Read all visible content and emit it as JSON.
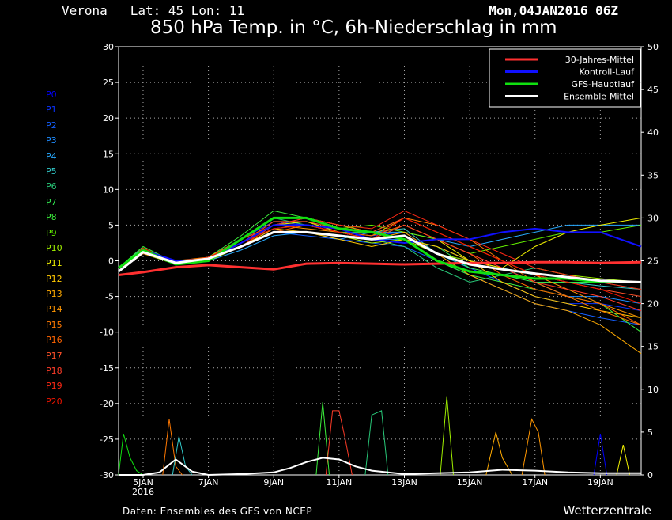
{
  "header": {
    "station": "Verona   Lat: 45 Lon: 11",
    "run": "Mon,04JAN2016 06Z",
    "title": "850 hPa Temp. in °C, 6h-Niederschlag in mm"
  },
  "footer": {
    "source": "Daten: Ensembles des GFS von NCEP",
    "brand": "Wetterzentrale"
  },
  "members": [
    {
      "label": "P0",
      "color": "#0000ff"
    },
    {
      "label": "P1",
      "color": "#0a32ff"
    },
    {
      "label": "P2",
      "color": "#1460ff"
    },
    {
      "label": "P3",
      "color": "#1e8cff"
    },
    {
      "label": "P4",
      "color": "#28aaff"
    },
    {
      "label": "P5",
      "color": "#32c8c8"
    },
    {
      "label": "P6",
      "color": "#28c878"
    },
    {
      "label": "P7",
      "color": "#32e650"
    },
    {
      "label": "P8",
      "color": "#3cf03c"
    },
    {
      "label": "P9",
      "color": "#64f000"
    },
    {
      "label": "P10",
      "color": "#a0f000"
    },
    {
      "label": "P11",
      "color": "#f0f000"
    },
    {
      "label": "P12",
      "color": "#ffc800"
    },
    {
      "label": "P13",
      "color": "#ffaa00"
    },
    {
      "label": "P14",
      "color": "#ff9600"
    },
    {
      "label": "P15",
      "color": "#ff7800"
    },
    {
      "label": "P16",
      "color": "#ff6400"
    },
    {
      "label": "P17",
      "color": "#ff5028"
    },
    {
      "label": "P18",
      "color": "#ff3c28"
    },
    {
      "label": "P19",
      "color": "#ff2814"
    },
    {
      "label": "P20",
      "color": "#f01400"
    }
  ],
  "legend": [
    {
      "label": "30-Jahres-Mittel",
      "color": "#ff3030"
    },
    {
      "label": "Kontroll-Lauf",
      "color": "#1010ff"
    },
    {
      "label": "GFS-Hauptlauf",
      "color": "#10e010"
    },
    {
      "label": "Ensemble-Mittel",
      "color": "#ffffff"
    }
  ],
  "chart_data": {
    "type": "line",
    "xlabel": "",
    "ylabel": "",
    "x_range_days": [
      4.25,
      20.25
    ],
    "x_ticks": [
      "5JAN",
      "7JAN",
      "9JAN",
      "11JAN",
      "13JAN",
      "15JAN",
      "17JAN",
      "19JAN"
    ],
    "x_ticks_days": [
      5,
      7,
      9,
      11,
      13,
      15,
      17,
      19
    ],
    "x_year_label": "2016",
    "y_left": {
      "min": -30,
      "max": 30,
      "ticks": [
        30,
        25,
        20,
        15,
        10,
        5,
        0,
        -5,
        -10,
        -15,
        -20,
        -25,
        -30
      ]
    },
    "y_right": {
      "min": 0,
      "max": 50,
      "ticks": [
        50,
        45,
        40,
        35,
        30,
        25,
        20,
        15,
        10,
        5,
        0
      ]
    },
    "grid": true,
    "legend_position": "top-right",
    "temperature_series": [
      {
        "name": "30-Jahres-Mittel",
        "color": "#ff3030",
        "x": [
          4.25,
          5,
          6,
          7,
          8,
          9,
          10,
          11,
          12,
          13,
          14,
          15,
          16,
          17,
          18,
          19,
          20.25
        ],
        "y": [
          -2,
          -1.6,
          -0.9,
          -0.6,
          -0.9,
          -1.2,
          -0.4,
          -0.3,
          -0.4,
          -0.5,
          -0.4,
          -0.3,
          -0.3,
          -0.2,
          -0.2,
          -0.3,
          -0.2
        ]
      },
      {
        "name": "Kontroll-Lauf",
        "color": "#1010ff",
        "x": [
          4.25,
          5,
          6,
          7,
          8,
          9,
          10,
          11,
          12,
          13,
          14,
          15,
          16,
          17,
          18,
          19,
          20.25
        ],
        "y": [
          -1,
          1.5,
          0,
          0.2,
          2.5,
          5,
          5,
          4.5,
          3,
          2.5,
          3,
          3,
          4,
          4.5,
          4,
          4,
          2
        ]
      },
      {
        "name": "GFS-Hauptlauf",
        "color": "#10e010",
        "x": [
          4.25,
          5,
          6,
          7,
          8,
          9,
          10,
          11,
          12,
          13,
          14,
          15,
          16,
          17,
          18,
          19,
          20.25
        ],
        "y": [
          -1,
          1.5,
          -0.5,
          0,
          3,
          6,
          6,
          4.5,
          4,
          3,
          0,
          -1.5,
          -2,
          -2.5,
          -2.5,
          -3,
          -3
        ]
      },
      {
        "name": "Ensemble-Mittel",
        "color": "#ffffff",
        "x": [
          4.25,
          5,
          6,
          7,
          8,
          9,
          10,
          11,
          12,
          13,
          14,
          15,
          16,
          17,
          18,
          19,
          20.25
        ],
        "y": [
          -1.5,
          1.2,
          -0.3,
          0.3,
          2,
          4,
          4,
          3.5,
          3,
          3.5,
          1,
          -0.5,
          -1.2,
          -1.8,
          -2.3,
          -2.8,
          -3
        ]
      }
    ],
    "member_temperature_y": [
      [
        -1,
        1.5,
        0,
        0.2,
        2.5,
        5,
        5,
        4.5,
        3,
        2.5,
        3,
        3,
        4,
        4.5,
        4,
        4,
        2
      ],
      [
        -1,
        1.2,
        -0.5,
        0.5,
        3,
        5.5,
        5,
        4,
        3.5,
        4,
        1,
        -1,
        -3,
        -5,
        -6,
        -6,
        -7
      ],
      [
        -1.5,
        1,
        -0.3,
        0.2,
        2,
        4,
        3.5,
        3,
        2.5,
        2,
        0,
        -2,
        -4,
        -6,
        -7,
        -8,
        -9
      ],
      [
        -1,
        1.5,
        -0.2,
        0.5,
        2.5,
        4.5,
        5,
        4,
        3,
        3,
        2,
        0,
        -1,
        -3,
        -5,
        -5,
        -6
      ],
      [
        -1.5,
        1.5,
        0,
        0,
        1.5,
        3.5,
        4,
        3,
        4,
        4,
        3,
        2,
        3,
        4,
        5,
        5,
        5
      ],
      [
        -1,
        1.8,
        -0.5,
        0.3,
        2,
        5,
        6,
        5,
        4,
        4.5,
        1,
        -1,
        -1,
        -2,
        -3,
        -3.5,
        -4
      ],
      [
        -1.5,
        1.2,
        -0.2,
        0.5,
        3,
        6,
        5,
        4,
        3,
        2,
        -1,
        -3,
        -2,
        -1,
        -2,
        -3,
        -4
      ],
      [
        -1,
        1.5,
        0,
        0.2,
        2,
        5,
        5.5,
        4,
        4,
        3,
        2,
        -1,
        -2,
        -3,
        -3,
        -3,
        -3
      ],
      [
        -1,
        2,
        -0.3,
        0.5,
        3.5,
        7,
        6,
        5,
        4,
        3,
        0,
        -2,
        -3,
        -4,
        -5,
        -6,
        -10
      ],
      [
        -1.5,
        1.5,
        0,
        0.3,
        2.5,
        5,
        5,
        4.5,
        5,
        4,
        3,
        1,
        2,
        3,
        4,
        4,
        5
      ],
      [
        -1,
        1,
        -0.5,
        0,
        2,
        4,
        4,
        3.5,
        2.5,
        3,
        1,
        0,
        -1,
        -1,
        -2,
        -2.5,
        -3
      ],
      [
        -1.5,
        1.5,
        0,
        0.3,
        2.5,
        5,
        5.5,
        4,
        3,
        5,
        3,
        0,
        -1,
        2,
        4,
        5,
        6
      ],
      [
        -1,
        1.5,
        -0.2,
        0.4,
        2,
        4.5,
        4,
        3,
        2,
        3,
        2,
        0,
        -3,
        -5,
        -6,
        -7,
        -8
      ],
      [
        -1,
        1.2,
        0,
        0,
        2.5,
        5,
        5,
        4,
        3,
        4,
        1,
        -2,
        -4,
        -6,
        -7,
        -9,
        -13
      ],
      [
        -1.5,
        1.8,
        -0.4,
        0.2,
        2,
        5,
        4.5,
        4,
        3.5,
        6,
        4,
        2,
        0,
        -2,
        -4,
        -6,
        -8
      ],
      [
        -1,
        1.5,
        0,
        0.5,
        3,
        6,
        6,
        5,
        4,
        6,
        5,
        3,
        0,
        -3,
        -5,
        -7,
        -9
      ],
      [
        -1.5,
        1,
        -0.3,
        0.2,
        2,
        4,
        5,
        4,
        3.5,
        5,
        3,
        1,
        -2,
        -4,
        -5,
        -6,
        -9
      ],
      [
        -1,
        1.5,
        0,
        0.3,
        2.5,
        5.5,
        5.5,
        4.5,
        4,
        6,
        4,
        2,
        0,
        -2,
        -3,
        -4,
        -5
      ],
      [
        -1.5,
        1.2,
        -0.2,
        0.4,
        3,
        5,
        5,
        4,
        3,
        5,
        3,
        1,
        -1,
        -3,
        -4,
        -5,
        -7
      ],
      [
        -1,
        1.5,
        0,
        0.2,
        2,
        5,
        6,
        5,
        4.5,
        7,
        5,
        3,
        1,
        -1,
        -2,
        -3,
        -4
      ],
      [
        -1.5,
        1.8,
        -0.4,
        0.5,
        2.5,
        4.5,
        5,
        4,
        3,
        6,
        4,
        2,
        0,
        -2,
        -3,
        -4,
        -6
      ]
    ],
    "precipitation_series": [
      {
        "name": "Ensemble-Mittel",
        "color": "#ffffff",
        "x": [
          4.25,
          5,
          5.5,
          6,
          6.5,
          7,
          8,
          9,
          9.5,
          10,
          10.5,
          11,
          11.5,
          12,
          12.5,
          13,
          14,
          15,
          16,
          17,
          18,
          19,
          20.25
        ],
        "y": [
          0,
          0,
          0.3,
          1.8,
          0.4,
          0,
          0.1,
          0.3,
          0.8,
          1.5,
          2,
          1.8,
          1,
          0.5,
          0.3,
          0.1,
          0.2,
          0.3,
          0.6,
          0.5,
          0.3,
          0.2,
          0.2
        ]
      }
    ],
    "member_precip_peaks": [
      {
        "color": "#10e010",
        "x": [
          4.25,
          4.4,
          4.6,
          4.8,
          5
        ],
        "y": [
          0,
          4.8,
          2,
          0.5,
          0
        ]
      },
      {
        "color": "#ff7800",
        "x": [
          5.6,
          5.8,
          6,
          6.2
        ],
        "y": [
          0,
          6.5,
          1,
          0
        ]
      },
      {
        "color": "#32c8c8",
        "x": [
          5.9,
          6.1,
          6.3,
          6.5
        ],
        "y": [
          0,
          4.5,
          1,
          0
        ]
      },
      {
        "color": "#3cf03c",
        "x": [
          10.3,
          10.5,
          10.7
        ],
        "y": [
          0,
          8.5,
          0
        ]
      },
      {
        "color": "#ff3c28",
        "x": [
          10.6,
          10.8,
          11,
          11.2,
          11.4
        ],
        "y": [
          0,
          7.5,
          7.5,
          4,
          0
        ]
      },
      {
        "color": "#28c878",
        "x": [
          11.8,
          12,
          12.3,
          12.5
        ],
        "y": [
          0,
          7,
          7.5,
          0
        ]
      },
      {
        "color": "#a0f000",
        "x": [
          14.1,
          14.3,
          14.5
        ],
        "y": [
          0,
          9.2,
          0
        ]
      },
      {
        "color": "#ff9600",
        "x": [
          16.6,
          16.9,
          17.1,
          17.3
        ],
        "y": [
          0,
          6.5,
          5,
          0
        ]
      },
      {
        "color": "#0000ff",
        "x": [
          18.8,
          19,
          19.2
        ],
        "y": [
          0,
          4.8,
          0
        ]
      },
      {
        "color": "#ffaa00",
        "x": [
          15.5,
          15.8,
          16,
          16.3
        ],
        "y": [
          0,
          5,
          2,
          0
        ]
      },
      {
        "color": "#f0f000",
        "x": [
          19.5,
          19.7,
          19.9
        ],
        "y": [
          0,
          3.5,
          0
        ]
      }
    ]
  }
}
